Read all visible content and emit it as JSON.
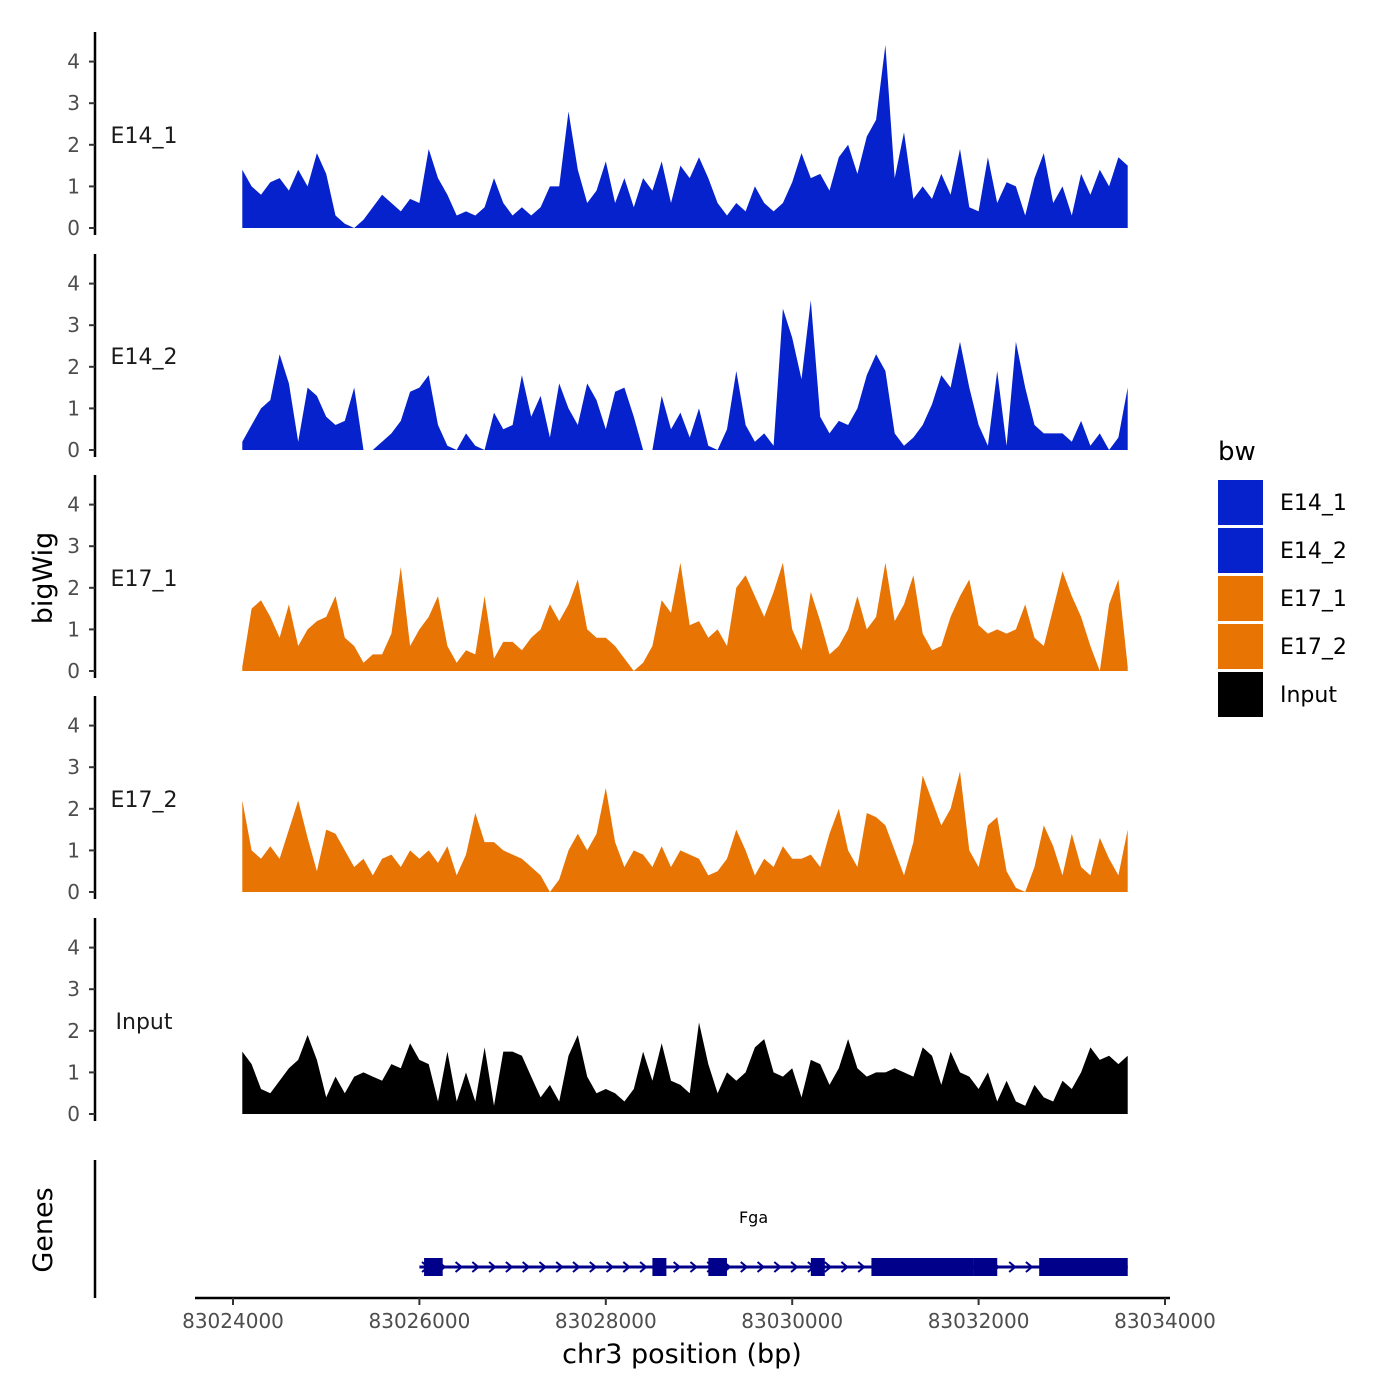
{
  "chart_data": {
    "type": "area",
    "xlabel": "chr3 position (bp)",
    "ylabel": "bigWig",
    "genes_label": "Genes",
    "chromosome": "chr3",
    "xlim": [
      83024000,
      83034000
    ],
    "x_ticks": [
      83024000,
      83026000,
      83028000,
      83030000,
      83032000,
      83034000
    ],
    "x_tick_labels": [
      "83024000",
      "83026000",
      "83028000",
      "83030000",
      "83032000",
      "83034000"
    ],
    "ylim": [
      0,
      4.5
    ],
    "y_ticks": [
      0,
      1,
      2,
      3,
      4
    ],
    "y_tick_labels": [
      "0",
      "1",
      "2",
      "3",
      "4"
    ],
    "legend": {
      "title": "bw",
      "entries": [
        {
          "label": "E14_1",
          "color": "#0522CC"
        },
        {
          "label": "E14_2",
          "color": "#0522CC"
        },
        {
          "label": "E17_1",
          "color": "#E87404"
        },
        {
          "label": "E17_2",
          "color": "#E87404"
        },
        {
          "label": "Input",
          "color": "#000000"
        }
      ]
    },
    "series": [
      {
        "name": "E14_1",
        "color": "#0522CC",
        "x": [
          83024100,
          83024200,
          83024300,
          83024400,
          83024500,
          83024600,
          83024700,
          83024800,
          83024900,
          83025000,
          83025100,
          83025200,
          83025300,
          83025400,
          83025500,
          83025600,
          83025700,
          83025800,
          83025900,
          83026000,
          83026100,
          83026200,
          83026300,
          83026400,
          83026500,
          83026600,
          83026700,
          83026800,
          83026900,
          83027000,
          83027100,
          83027200,
          83027300,
          83027400,
          83027500,
          83027600,
          83027700,
          83027800,
          83027900,
          83028000,
          83028100,
          83028200,
          83028300,
          83028400,
          83028500,
          83028600,
          83028700,
          83028800,
          83028900,
          83029000,
          83029100,
          83029200,
          83029300,
          83029400,
          83029500,
          83029600,
          83029700,
          83029800,
          83029900,
          83030000,
          83030100,
          83030200,
          83030300,
          83030400,
          83030500,
          83030600,
          83030700,
          83030800,
          83030900,
          83031000,
          83031100,
          83031200,
          83031300,
          83031400,
          83031500,
          83031600,
          83031700,
          83031800,
          83031900,
          83032000,
          83032100,
          83032200,
          83032300,
          83032400,
          83032500,
          83032600,
          83032700,
          83032800,
          83032900,
          83033000,
          83033100,
          83033200,
          83033300,
          83033400,
          83033500,
          83033600
        ],
        "values": [
          1.4,
          1.0,
          0.8,
          1.1,
          1.2,
          0.9,
          1.4,
          1.0,
          1.8,
          1.3,
          0.3,
          0.1,
          0.0,
          0.2,
          0.5,
          0.8,
          0.6,
          0.4,
          0.7,
          0.6,
          1.9,
          1.2,
          0.8,
          0.3,
          0.4,
          0.3,
          0.5,
          1.2,
          0.6,
          0.3,
          0.5,
          0.3,
          0.5,
          1.0,
          1.0,
          2.8,
          1.4,
          0.6,
          0.9,
          1.6,
          0.6,
          1.2,
          0.5,
          1.2,
          0.9,
          1.6,
          0.6,
          1.5,
          1.2,
          1.7,
          1.2,
          0.6,
          0.3,
          0.6,
          0.4,
          1.0,
          0.6,
          0.4,
          0.6,
          1.1,
          1.8,
          1.2,
          1.3,
          0.9,
          1.7,
          2.0,
          1.3,
          2.2,
          2.6,
          4.4,
          1.2,
          2.3,
          0.7,
          1.0,
          0.7,
          1.3,
          0.8,
          1.9,
          0.5,
          0.4,
          1.7,
          0.6,
          1.1,
          1.0,
          0.3,
          1.2,
          1.8,
          0.6,
          1.0,
          0.3,
          1.3,
          0.8,
          1.4,
          1.0,
          1.7,
          1.5
        ]
      },
      {
        "name": "E14_2",
        "color": "#0522CC",
        "x": [
          83024100,
          83024200,
          83024300,
          83024400,
          83024500,
          83024600,
          83024700,
          83024800,
          83024900,
          83025000,
          83025100,
          83025200,
          83025300,
          83025400,
          83025500,
          83025600,
          83025700,
          83025800,
          83025900,
          83026000,
          83026100,
          83026200,
          83026300,
          83026400,
          83026500,
          83026600,
          83026700,
          83026800,
          83026900,
          83027000,
          83027100,
          83027200,
          83027300,
          83027400,
          83027500,
          83027600,
          83027700,
          83027800,
          83027900,
          83028000,
          83028100,
          83028200,
          83028300,
          83028400,
          83028500,
          83028600,
          83028700,
          83028800,
          83028900,
          83029000,
          83029100,
          83029200,
          83029300,
          83029400,
          83029500,
          83029600,
          83029700,
          83029800,
          83029900,
          83030000,
          83030100,
          83030200,
          83030300,
          83030400,
          83030500,
          83030600,
          83030700,
          83030800,
          83030900,
          83031000,
          83031100,
          83031200,
          83031300,
          83031400,
          83031500,
          83031600,
          83031700,
          83031800,
          83031900,
          83032000,
          83032100,
          83032200,
          83032300,
          83032400,
          83032500,
          83032600,
          83032700,
          83032800,
          83032900,
          83033000,
          83033100,
          83033200,
          83033300,
          83033400,
          83033500,
          83033600
        ],
        "values": [
          0.2,
          0.6,
          1.0,
          1.2,
          2.3,
          1.6,
          0.2,
          1.5,
          1.3,
          0.8,
          0.6,
          0.7,
          1.5,
          0.0,
          0.0,
          0.2,
          0.4,
          0.7,
          1.4,
          1.5,
          1.8,
          0.6,
          0.1,
          0.0,
          0.4,
          0.1,
          0.0,
          0.9,
          0.5,
          0.6,
          1.8,
          0.8,
          1.3,
          0.3,
          1.6,
          1.0,
          0.6,
          1.6,
          1.2,
          0.5,
          1.4,
          1.5,
          0.8,
          0.0,
          0.0,
          1.3,
          0.5,
          0.9,
          0.3,
          1.0,
          0.1,
          0.0,
          0.5,
          1.9,
          0.6,
          0.2,
          0.4,
          0.1,
          3.4,
          2.7,
          1.7,
          3.6,
          0.8,
          0.4,
          0.7,
          0.6,
          1.0,
          1.8,
          2.3,
          1.9,
          0.4,
          0.1,
          0.3,
          0.6,
          1.1,
          1.8,
          1.5,
          2.6,
          1.5,
          0.6,
          0.1,
          1.9,
          0.1,
          2.6,
          1.5,
          0.6,
          0.4,
          0.4,
          0.4,
          0.2,
          0.7,
          0.1,
          0.4,
          0.0,
          0.3,
          1.5
        ]
      },
      {
        "name": "E17_1",
        "color": "#E87404",
        "x": [
          83024100,
          83024200,
          83024300,
          83024400,
          83024500,
          83024600,
          83024700,
          83024800,
          83024900,
          83025000,
          83025100,
          83025200,
          83025300,
          83025400,
          83025500,
          83025600,
          83025700,
          83025800,
          83025900,
          83026000,
          83026100,
          83026200,
          83026300,
          83026400,
          83026500,
          83026600,
          83026700,
          83026800,
          83026900,
          83027000,
          83027100,
          83027200,
          83027300,
          83027400,
          83027500,
          83027600,
          83027700,
          83027800,
          83027900,
          83028000,
          83028100,
          83028200,
          83028300,
          83028400,
          83028500,
          83028600,
          83028700,
          83028800,
          83028900,
          83029000,
          83029100,
          83029200,
          83029300,
          83029400,
          83029500,
          83029600,
          83029700,
          83029800,
          83029900,
          83030000,
          83030100,
          83030200,
          83030300,
          83030400,
          83030500,
          83030600,
          83030700,
          83030800,
          83030900,
          83031000,
          83031100,
          83031200,
          83031300,
          83031400,
          83031500,
          83031600,
          83031700,
          83031800,
          83031900,
          83032000,
          83032100,
          83032200,
          83032300,
          83032400,
          83032500,
          83032600,
          83032700,
          83032800,
          83032900,
          83033000,
          83033100,
          83033200,
          83033300,
          83033400,
          83033500,
          83033600
        ],
        "values": [
          0.1,
          1.5,
          1.7,
          1.3,
          0.8,
          1.6,
          0.6,
          1.0,
          1.2,
          1.3,
          1.8,
          0.8,
          0.6,
          0.2,
          0.4,
          0.4,
          0.9,
          2.5,
          0.6,
          1.0,
          1.3,
          1.8,
          0.6,
          0.2,
          0.5,
          0.4,
          1.8,
          0.3,
          0.7,
          0.7,
          0.5,
          0.8,
          1.0,
          1.6,
          1.2,
          1.6,
          2.2,
          1.0,
          0.8,
          0.8,
          0.6,
          0.3,
          0.0,
          0.2,
          0.6,
          1.7,
          1.4,
          2.6,
          1.1,
          1.2,
          0.8,
          1.0,
          0.6,
          2.0,
          2.3,
          1.8,
          1.3,
          1.9,
          2.6,
          1.0,
          0.5,
          1.9,
          1.2,
          0.4,
          0.6,
          1.0,
          1.8,
          1.0,
          1.3,
          2.6,
          1.2,
          1.6,
          2.3,
          0.9,
          0.5,
          0.6,
          1.3,
          1.8,
          2.2,
          1.1,
          0.9,
          1.0,
          0.9,
          1.0,
          1.6,
          0.8,
          0.6,
          1.5,
          2.4,
          1.8,
          1.3,
          0.6,
          0.0,
          1.6,
          2.2,
          0.1
        ]
      },
      {
        "name": "E17_2",
        "color": "#E87404",
        "x": [
          83024100,
          83024200,
          83024300,
          83024400,
          83024500,
          83024600,
          83024700,
          83024800,
          83024900,
          83025000,
          83025100,
          83025200,
          83025300,
          83025400,
          83025500,
          83025600,
          83025700,
          83025800,
          83025900,
          83026000,
          83026100,
          83026200,
          83026300,
          83026400,
          83026500,
          83026600,
          83026700,
          83026800,
          83026900,
          83027000,
          83027100,
          83027200,
          83027300,
          83027400,
          83027500,
          83027600,
          83027700,
          83027800,
          83027900,
          83028000,
          83028100,
          83028200,
          83028300,
          83028400,
          83028500,
          83028600,
          83028700,
          83028800,
          83028900,
          83029000,
          83029100,
          83029200,
          83029300,
          83029400,
          83029500,
          83029600,
          83029700,
          83029800,
          83029900,
          83030000,
          83030100,
          83030200,
          83030300,
          83030400,
          83030500,
          83030600,
          83030700,
          83030800,
          83030900,
          83031000,
          83031100,
          83031200,
          83031300,
          83031400,
          83031500,
          83031600,
          83031700,
          83031800,
          83031900,
          83032000,
          83032100,
          83032200,
          83032300,
          83032400,
          83032500,
          83032600,
          83032700,
          83032800,
          83032900,
          83033000,
          83033100,
          83033200,
          83033300,
          83033400,
          83033500,
          83033600
        ],
        "values": [
          2.2,
          1.0,
          0.8,
          1.1,
          0.8,
          1.5,
          2.2,
          1.3,
          0.5,
          1.5,
          1.4,
          1.0,
          0.6,
          0.8,
          0.4,
          0.8,
          0.9,
          0.6,
          1.0,
          0.8,
          1.0,
          0.7,
          1.1,
          0.4,
          0.9,
          1.9,
          1.2,
          1.2,
          1.0,
          0.9,
          0.8,
          0.6,
          0.4,
          0.0,
          0.3,
          1.0,
          1.4,
          1.0,
          1.4,
          2.5,
          1.2,
          0.6,
          1.0,
          0.9,
          0.6,
          1.1,
          0.6,
          1.0,
          0.9,
          0.8,
          0.4,
          0.5,
          0.8,
          1.5,
          1.0,
          0.4,
          0.8,
          0.6,
          1.1,
          0.8,
          0.8,
          0.9,
          0.6,
          1.4,
          2.0,
          1.0,
          0.6,
          1.9,
          1.8,
          1.6,
          1.0,
          0.4,
          1.2,
          2.8,
          2.2,
          1.6,
          2.0,
          2.9,
          1.0,
          0.6,
          1.6,
          1.8,
          0.5,
          0.1,
          0.0,
          0.6,
          1.6,
          1.1,
          0.4,
          1.4,
          0.6,
          0.4,
          1.3,
          0.8,
          0.4,
          1.5
        ]
      },
      {
        "name": "Input",
        "color": "#000000",
        "x": [
          83024100,
          83024200,
          83024300,
          83024400,
          83024500,
          83024600,
          83024700,
          83024800,
          83024900,
          83025000,
          83025100,
          83025200,
          83025300,
          83025400,
          83025500,
          83025600,
          83025700,
          83025800,
          83025900,
          83026000,
          83026100,
          83026200,
          83026300,
          83026400,
          83026500,
          83026600,
          83026700,
          83026800,
          83026900,
          83027000,
          83027100,
          83027200,
          83027300,
          83027400,
          83027500,
          83027600,
          83027700,
          83027800,
          83027900,
          83028000,
          83028100,
          83028200,
          83028300,
          83028400,
          83028500,
          83028600,
          83028700,
          83028800,
          83028900,
          83029000,
          83029100,
          83029200,
          83029300,
          83029400,
          83029500,
          83029600,
          83029700,
          83029800,
          83029900,
          83030000,
          83030100,
          83030200,
          83030300,
          83030400,
          83030500,
          83030600,
          83030700,
          83030800,
          83030900,
          83031000,
          83031100,
          83031200,
          83031300,
          83031400,
          83031500,
          83031600,
          83031700,
          83031800,
          83031900,
          83032000,
          83032100,
          83032200,
          83032300,
          83032400,
          83032500,
          83032600,
          83032700,
          83032800,
          83032900,
          83033000,
          83033100,
          83033200,
          83033300,
          83033400,
          83033500,
          83033600
        ],
        "values": [
          1.5,
          1.2,
          0.6,
          0.5,
          0.8,
          1.1,
          1.3,
          1.9,
          1.3,
          0.4,
          0.9,
          0.5,
          0.9,
          1.0,
          0.9,
          0.8,
          1.2,
          1.1,
          1.7,
          1.3,
          1.2,
          0.3,
          1.5,
          0.3,
          1.0,
          0.3,
          1.6,
          0.2,
          1.5,
          1.5,
          1.4,
          0.9,
          0.4,
          0.7,
          0.3,
          1.4,
          1.9,
          0.9,
          0.5,
          0.6,
          0.5,
          0.3,
          0.6,
          1.5,
          0.8,
          1.7,
          0.8,
          0.7,
          0.5,
          2.2,
          1.2,
          0.5,
          1.0,
          0.8,
          1.0,
          1.6,
          1.8,
          1.0,
          0.9,
          1.1,
          0.4,
          1.3,
          1.2,
          0.7,
          1.1,
          1.8,
          1.1,
          0.9,
          1.0,
          1.0,
          1.1,
          1.0,
          0.9,
          1.6,
          1.4,
          0.7,
          1.5,
          1.0,
          0.9,
          0.6,
          1.0,
          0.3,
          0.8,
          0.3,
          0.2,
          0.7,
          0.4,
          0.3,
          0.8,
          0.6,
          1.0,
          1.6,
          1.3,
          1.4,
          1.2,
          1.4
        ]
      }
    ],
    "genes": [
      {
        "name": "Fga",
        "strand": "+",
        "start": 83026000,
        "end": 83033600,
        "color": "#00008B",
        "exons": [
          {
            "start": 83026050,
            "end": 83026250
          },
          {
            "start": 83028500,
            "end": 83028650
          },
          {
            "start": 83029100,
            "end": 83029300
          },
          {
            "start": 83030200,
            "end": 83030350
          },
          {
            "start": 83030850,
            "end": 83031950
          },
          {
            "start": 83031950,
            "end": 83032200
          },
          {
            "start": 83032650,
            "end": 83033600
          }
        ]
      }
    ]
  }
}
